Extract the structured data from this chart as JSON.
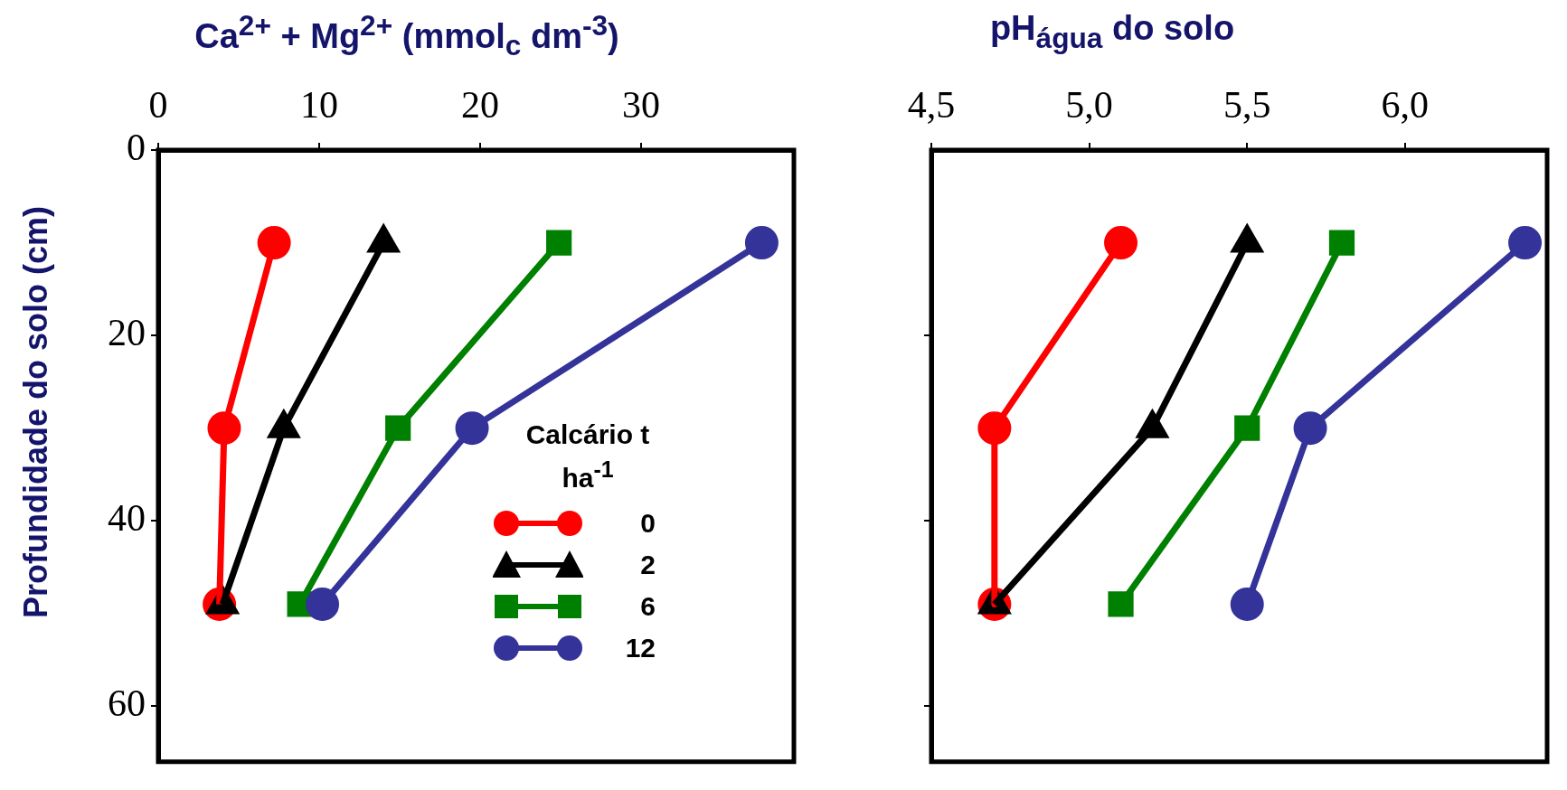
{
  "chart_data": [
    {
      "type": "line",
      "xlabel": "Ca$^{2+}$ + Mg$^{2+}$ (mmol$_{c}$ dm$^{-3}$)",
      "ylabel": "Profundidade do solo (cm)",
      "legend_title": "Calcário t ha$^{-1}$",
      "legend": "bottom right",
      "xlim": [
        0,
        39.5
      ],
      "xticks": [
        0,
        10,
        20,
        30
      ],
      "ylim": [
        66,
        0
      ],
      "yticks": [
        0,
        20,
        40,
        60
      ],
      "grid": false,
      "line_style": "solid",
      "series": [
        {
          "name": "0",
          "color": "#ff0000",
          "marker": "circle",
          "x": [
            7.2,
            4.1,
            3.8
          ],
          "values": [
            10,
            30,
            49
          ]
        },
        {
          "name": "2",
          "color": "#000000",
          "marker": "triangle",
          "x": [
            14.0,
            7.8,
            4.0
          ],
          "values": [
            10,
            30,
            49
          ]
        },
        {
          "name": "6",
          "color": "#008000",
          "marker": "square",
          "x": [
            24.9,
            14.9,
            8.8
          ],
          "values": [
            10,
            30,
            49
          ]
        },
        {
          "name": "12",
          "color": "#333399",
          "marker": "circle",
          "x": [
            37.5,
            19.5,
            10.2
          ],
          "values": [
            10,
            30,
            49
          ]
        }
      ]
    },
    {
      "type": "line",
      "xlabel": "pH$_{água}$ do solo",
      "tick_labels": "x",
      "xlim": [
        4.5,
        6.45
      ],
      "xticks": [
        {
          "value": 4.5,
          "label": "4,5"
        },
        {
          "value": 5.0,
          "label": "5,0"
        },
        {
          "value": 5.5,
          "label": "5,5"
        },
        {
          "value": 6.0,
          "label": "6,0"
        }
      ],
      "ylim": [
        66,
        0
      ],
      "yticks": [
        {
          "value": 20,
          "label": null
        },
        {
          "value": 40,
          "label": null
        },
        {
          "value": 60,
          "label": null
        }
      ],
      "grid": false,
      "line_style": "solid",
      "series": [
        {
          "color": "#ff0000",
          "marker": "circle",
          "x": [
            5.1,
            4.7,
            4.7
          ],
          "values": [
            10,
            30,
            49
          ]
        },
        {
          "color": "#000000",
          "marker": "triangle",
          "x": [
            5.5,
            5.2,
            4.7
          ],
          "values": [
            10,
            30,
            49
          ]
        },
        {
          "color": "#008000",
          "marker": "square",
          "x": [
            5.8,
            5.5,
            5.1
          ],
          "values": [
            10,
            30,
            49
          ]
        },
        {
          "color": "#333399",
          "marker": "circle",
          "x": [
            6.38,
            5.7,
            5.5
          ],
          "values": [
            10,
            30,
            49
          ]
        }
      ]
    }
  ]
}
